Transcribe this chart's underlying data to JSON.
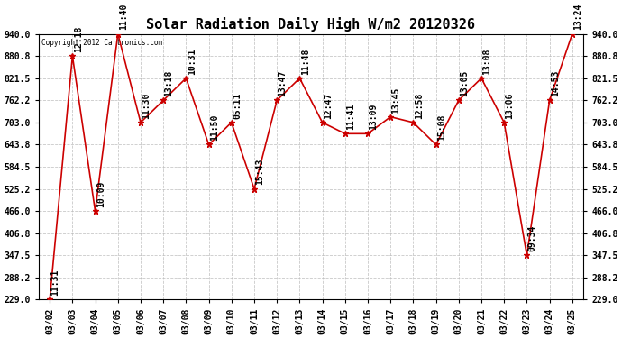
{
  "title": "Solar Radiation Daily High W/m2 20120326",
  "copyright_text": "Copyright 2012 Cartronics.com",
  "dates": [
    "03/02",
    "03/03",
    "03/04",
    "03/05",
    "03/06",
    "03/07",
    "03/08",
    "03/09",
    "03/10",
    "03/11",
    "03/12",
    "03/13",
    "03/14",
    "03/15",
    "03/16",
    "03/17",
    "03/18",
    "03/19",
    "03/20",
    "03/21",
    "03/22",
    "03/23",
    "03/24",
    "03/25"
  ],
  "values": [
    229.0,
    880.8,
    466.0,
    940.0,
    703.0,
    762.2,
    821.5,
    643.8,
    703.0,
    525.2,
    762.2,
    821.5,
    703.0,
    673.0,
    673.0,
    718.0,
    703.0,
    643.8,
    762.2,
    821.5,
    703.0,
    347.5,
    762.2,
    940.0
  ],
  "times": [
    "11:31",
    "12:18",
    "10:09",
    "11:40",
    "11:30",
    "13:18",
    "10:31",
    "11:50",
    "05:11",
    "15:43",
    "13:47",
    "11:48",
    "12:47",
    "11:41",
    "13:09",
    "13:45",
    "12:58",
    "15:08",
    "13:05",
    "13:08",
    "13:06",
    "09:34",
    "14:53",
    "13:24"
  ],
  "ylim_min": 229.0,
  "ylim_max": 940.0,
  "yticks": [
    229.0,
    288.2,
    347.5,
    406.8,
    466.0,
    525.2,
    584.5,
    643.8,
    703.0,
    762.2,
    821.5,
    880.8,
    940.0
  ],
  "line_color": "#cc0000",
  "marker_color": "#cc0000",
  "bg_color": "#ffffff",
  "grid_color": "#bbbbbb",
  "title_fontsize": 11,
  "tick_fontsize": 7,
  "annotation_fontsize": 7
}
